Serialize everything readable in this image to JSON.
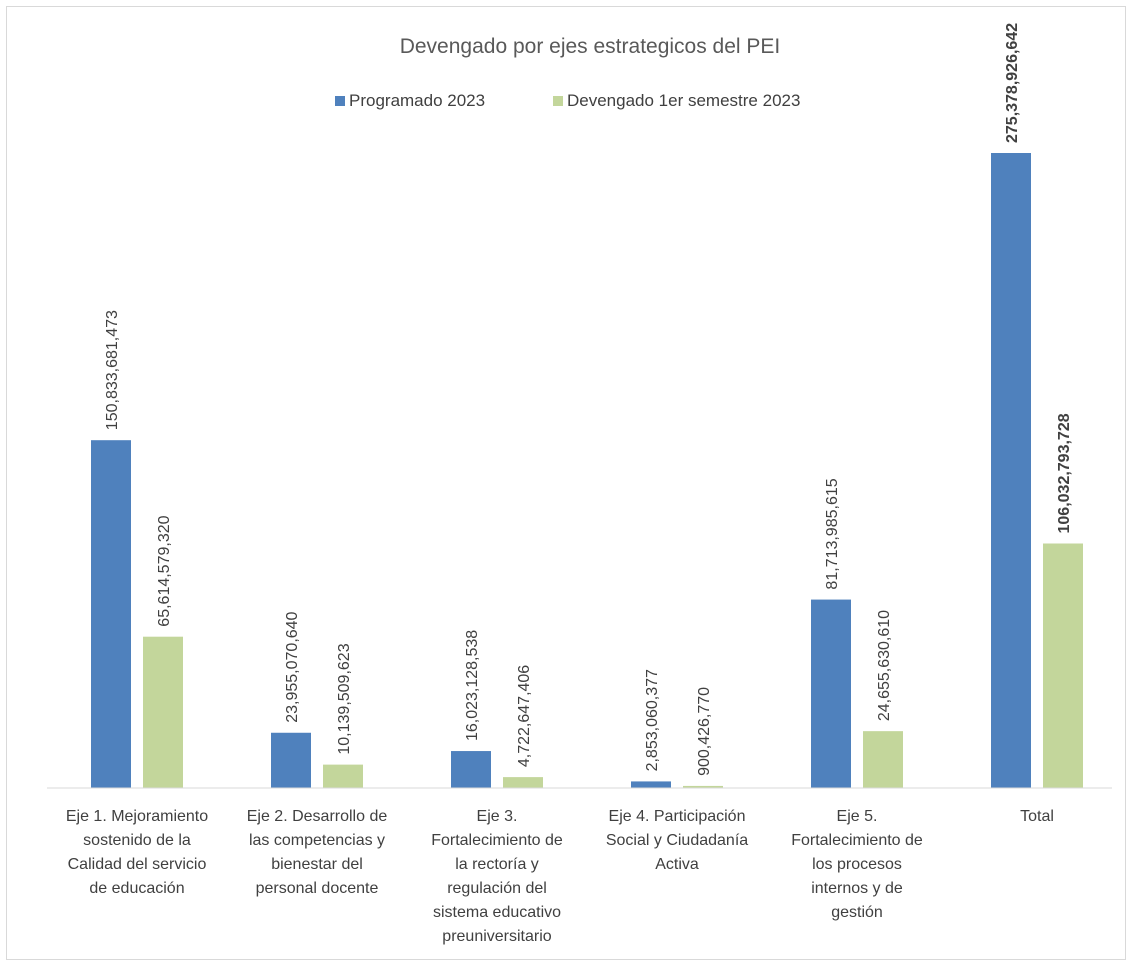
{
  "chart_data": {
    "type": "bar",
    "title": "Devengado por ejes estrategicos del PEI",
    "xlabel": "",
    "ylabel": "",
    "ylim": [
      0,
      300000000000
    ],
    "grid": false,
    "legend_position": "top",
    "categories": [
      "Eje 1. Mejoramiento sostenido de la Calidad del servicio de educación",
      "Eje 2. Desarrollo de las competencias y bienestar del personal docente",
      "Eje 3. Fortalecimiento de la rectoría y regulación del sistema educativo preuniversitario",
      "Eje 4. Participación Social y Ciudadanía Activa",
      "Eje 5. Fortalecimiento de los procesos internos y de gestión",
      "Total"
    ],
    "category_label_lines": [
      [
        "Eje 1. Mejoramiento",
        "sostenido de la",
        "Calidad del servicio",
        "de educación"
      ],
      [
        "Eje 2. Desarrollo de",
        "las competencias y",
        "bienestar del",
        "personal docente"
      ],
      [
        "Eje 3.",
        "Fortalecimiento de",
        "la rectoría y",
        "regulación del",
        "sistema educativo",
        "preuniversitario"
      ],
      [
        "Eje 4. Participación",
        "Social y Ciudadanía",
        "Activa"
      ],
      [
        "Eje 5.",
        "Fortalecimiento de",
        "los procesos",
        "internos y de",
        "gestión"
      ],
      [
        "Total"
      ]
    ],
    "series": [
      {
        "name": "Programado 2023",
        "color": "#4f81bd",
        "values": [
          150833681473,
          23955070640,
          16023128538,
          2853060377,
          81713985615,
          275378926642
        ],
        "labels": [
          "150,833,681,473",
          "23,955,070,640",
          "16,023,128,538",
          "2,853,060,377",
          "81,713,985,615",
          "275,378,926,642"
        ]
      },
      {
        "name": "Devengado 1er semestre 2023",
        "color": "#c3d69b",
        "values": [
          65614579320,
          10139509623,
          4722647406,
          900426770,
          24655630610,
          106032793728
        ],
        "labels": [
          "65,614,579,320",
          "10,139,509,623",
          "4,722,647,406",
          "900,426,770",
          "24,655,630,610",
          "106,032,793,728"
        ]
      }
    ],
    "bold_label_categories": [
      "Total"
    ]
  }
}
